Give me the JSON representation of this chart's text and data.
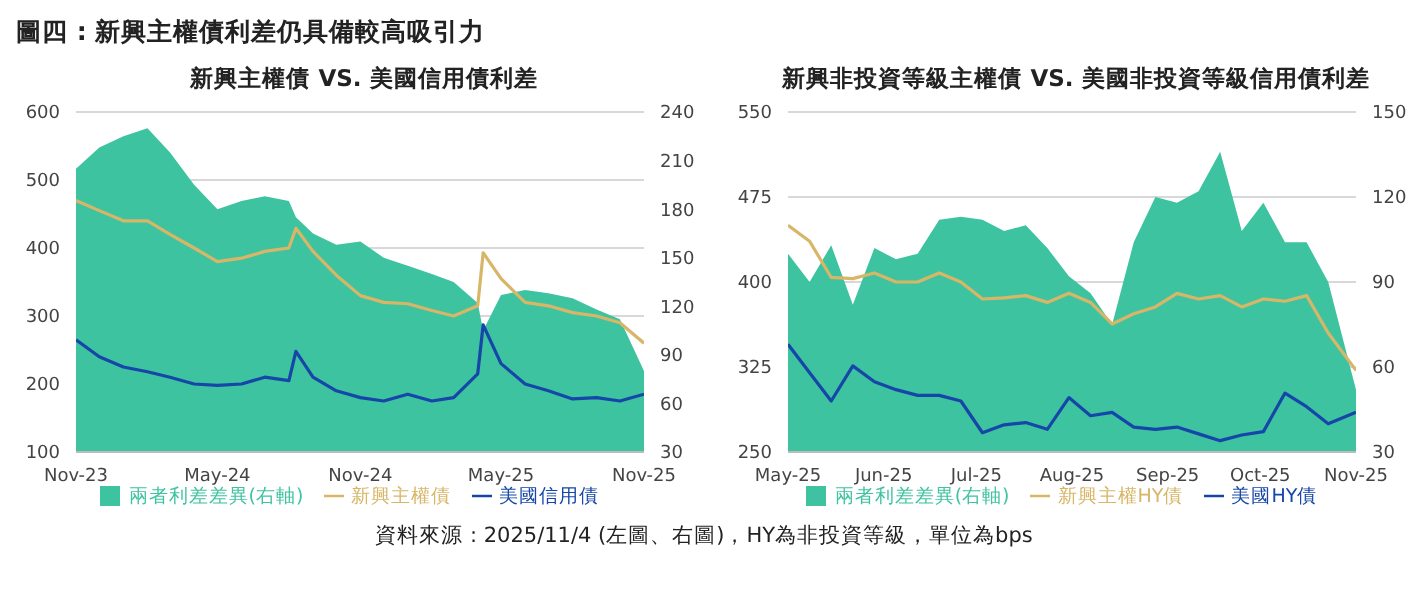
{
  "chart_data": [
    {
      "type": "line",
      "title": "新興主權債 VS. 美國信用債利差",
      "annotations": [
        "圖四 : 新興主權債利差仍具備較高吸引力"
      ],
      "x": [
        "2023-11-01",
        "2023-12-01",
        "2024-01-01",
        "2024-02-01",
        "2024-03-01",
        "2024-04-01",
        "2024-05-01",
        "2024-06-01",
        "2024-07-01",
        "2024-08-01",
        "2024-08-10",
        "2024-09-01",
        "2024-10-01",
        "2024-11-01",
        "2024-12-01",
        "2025-01-01",
        "2025-02-01",
        "2025-03-01",
        "2025-04-01",
        "2025-04-08",
        "2025-05-01",
        "2025-06-01",
        "2025-07-01",
        "2025-08-01",
        "2025-09-01",
        "2025-10-01",
        "2025-11-01"
      ],
      "series": [
        {
          "name": "兩者利差差異(右軸)",
          "type": "area",
          "axis": "y2",
          "color": "#3ec3a0",
          "values": [
            205,
            218,
            225,
            230,
            215,
            195,
            180,
            185,
            188,
            185,
            175,
            165,
            158,
            160,
            150,
            145,
            140,
            135,
            122,
            105,
            127,
            130,
            128,
            125,
            118,
            112,
            80
          ]
        },
        {
          "name": "新興主權債",
          "color": "#d8b668",
          "values": [
            470,
            455,
            440,
            440,
            420,
            400,
            380,
            385,
            395,
            400,
            429,
            395,
            360,
            330,
            320,
            318,
            308,
            300,
            315,
            393,
            355,
            320,
            315,
            305,
            300,
            290,
            260
          ]
        },
        {
          "name": "美國信用債",
          "color": "#1546a8",
          "values": [
            265,
            240,
            225,
            218,
            210,
            200,
            198,
            200,
            210,
            205,
            248,
            210,
            190,
            180,
            175,
            185,
            175,
            180,
            215,
            287,
            230,
            200,
            190,
            178,
            180,
            175,
            185
          ]
        }
      ],
      "xlim": [
        "2023-11-01",
        "2025-11-01"
      ],
      "xticks": [
        {
          "value": "2023-11-01",
          "label": "Nov-23"
        },
        {
          "value": "2024-05-01",
          "label": "May-24"
        },
        {
          "value": "2024-11-01",
          "label": "Nov-24"
        },
        {
          "value": "2025-05-01",
          "label": "May-25"
        },
        {
          "value": "2025-11-01",
          "label": "Nov-25"
        }
      ],
      "ylim": [
        100,
        600
      ],
      "yticks": [
        100,
        200,
        300,
        400,
        500,
        600
      ],
      "y2lim": [
        30,
        240
      ],
      "y2ticks": [
        30,
        60,
        90,
        120,
        150,
        180,
        210,
        240
      ],
      "grid": "y",
      "legend": "bottom",
      "marker": "none"
    },
    {
      "type": "line",
      "title": "新興非投資等級主權債 VS. 美國非投資等級信用債利差",
      "annotations": [
        "資料來源 : 2025/11/4 (左圖、右圖)，HY為非投資等級，單位為bps"
      ],
      "x": [
        "2025-05-01",
        "2025-05-08",
        "2025-05-15",
        "2025-05-22",
        "2025-05-29",
        "2025-06-05",
        "2025-06-12",
        "2025-06-19",
        "2025-06-26",
        "2025-07-03",
        "2025-07-10",
        "2025-07-17",
        "2025-07-24",
        "2025-07-31",
        "2025-08-07",
        "2025-08-14",
        "2025-08-21",
        "2025-08-28",
        "2025-09-04",
        "2025-09-11",
        "2025-09-18",
        "2025-09-25",
        "2025-10-02",
        "2025-10-09",
        "2025-10-16",
        "2025-10-23",
        "2025-11-01"
      ],
      "series": [
        {
          "name": "兩者利差差異(右軸)",
          "type": "area",
          "axis": "y2",
          "color": "#3ec3a0",
          "values": [
            100,
            90,
            103,
            82,
            102,
            98,
            100,
            112,
            113,
            112,
            108,
            110,
            102,
            92,
            86,
            75,
            104,
            120,
            118,
            122,
            136,
            108,
            118,
            104,
            104,
            90,
            52
          ]
        },
        {
          "name": "新興主權HY債",
          "color": "#d8b668",
          "values": [
            450,
            436,
            404,
            403,
            408,
            400,
            400,
            408,
            400,
            385,
            386,
            388,
            382,
            390,
            382,
            363,
            372,
            378,
            390,
            385,
            388,
            378,
            385,
            383,
            388,
            355,
            322
          ]
        },
        {
          "name": "美國HY債",
          "color": "#1546a8",
          "values": [
            345,
            320,
            295,
            326,
            312,
            305,
            300,
            300,
            295,
            267,
            274,
            276,
            270,
            298,
            282,
            285,
            272,
            270,
            272,
            266,
            260,
            265,
            268,
            302,
            290,
            275,
            285
          ]
        }
      ],
      "xlim": [
        "2025-05-01",
        "2025-11-01"
      ],
      "xticks": [
        {
          "value": "2025-05-01",
          "label": "May-25"
        },
        {
          "value": "2025-06-01",
          "label": "Jun-25"
        },
        {
          "value": "2025-07-01",
          "label": "Jul-25"
        },
        {
          "value": "2025-08-01",
          "label": "Aug-25"
        },
        {
          "value": "2025-09-01",
          "label": "Sep-25"
        },
        {
          "value": "2025-10-01",
          "label": "Oct-25"
        },
        {
          "value": "2025-11-01",
          "label": "Nov-25"
        }
      ],
      "ylim": [
        250,
        550
      ],
      "yticks": [
        250,
        325,
        400,
        475,
        550
      ],
      "y2lim": [
        30,
        150
      ],
      "y2ticks": [
        30,
        60,
        90,
        120,
        150
      ],
      "grid": "y",
      "legend": "bottom",
      "marker": "none"
    }
  ]
}
